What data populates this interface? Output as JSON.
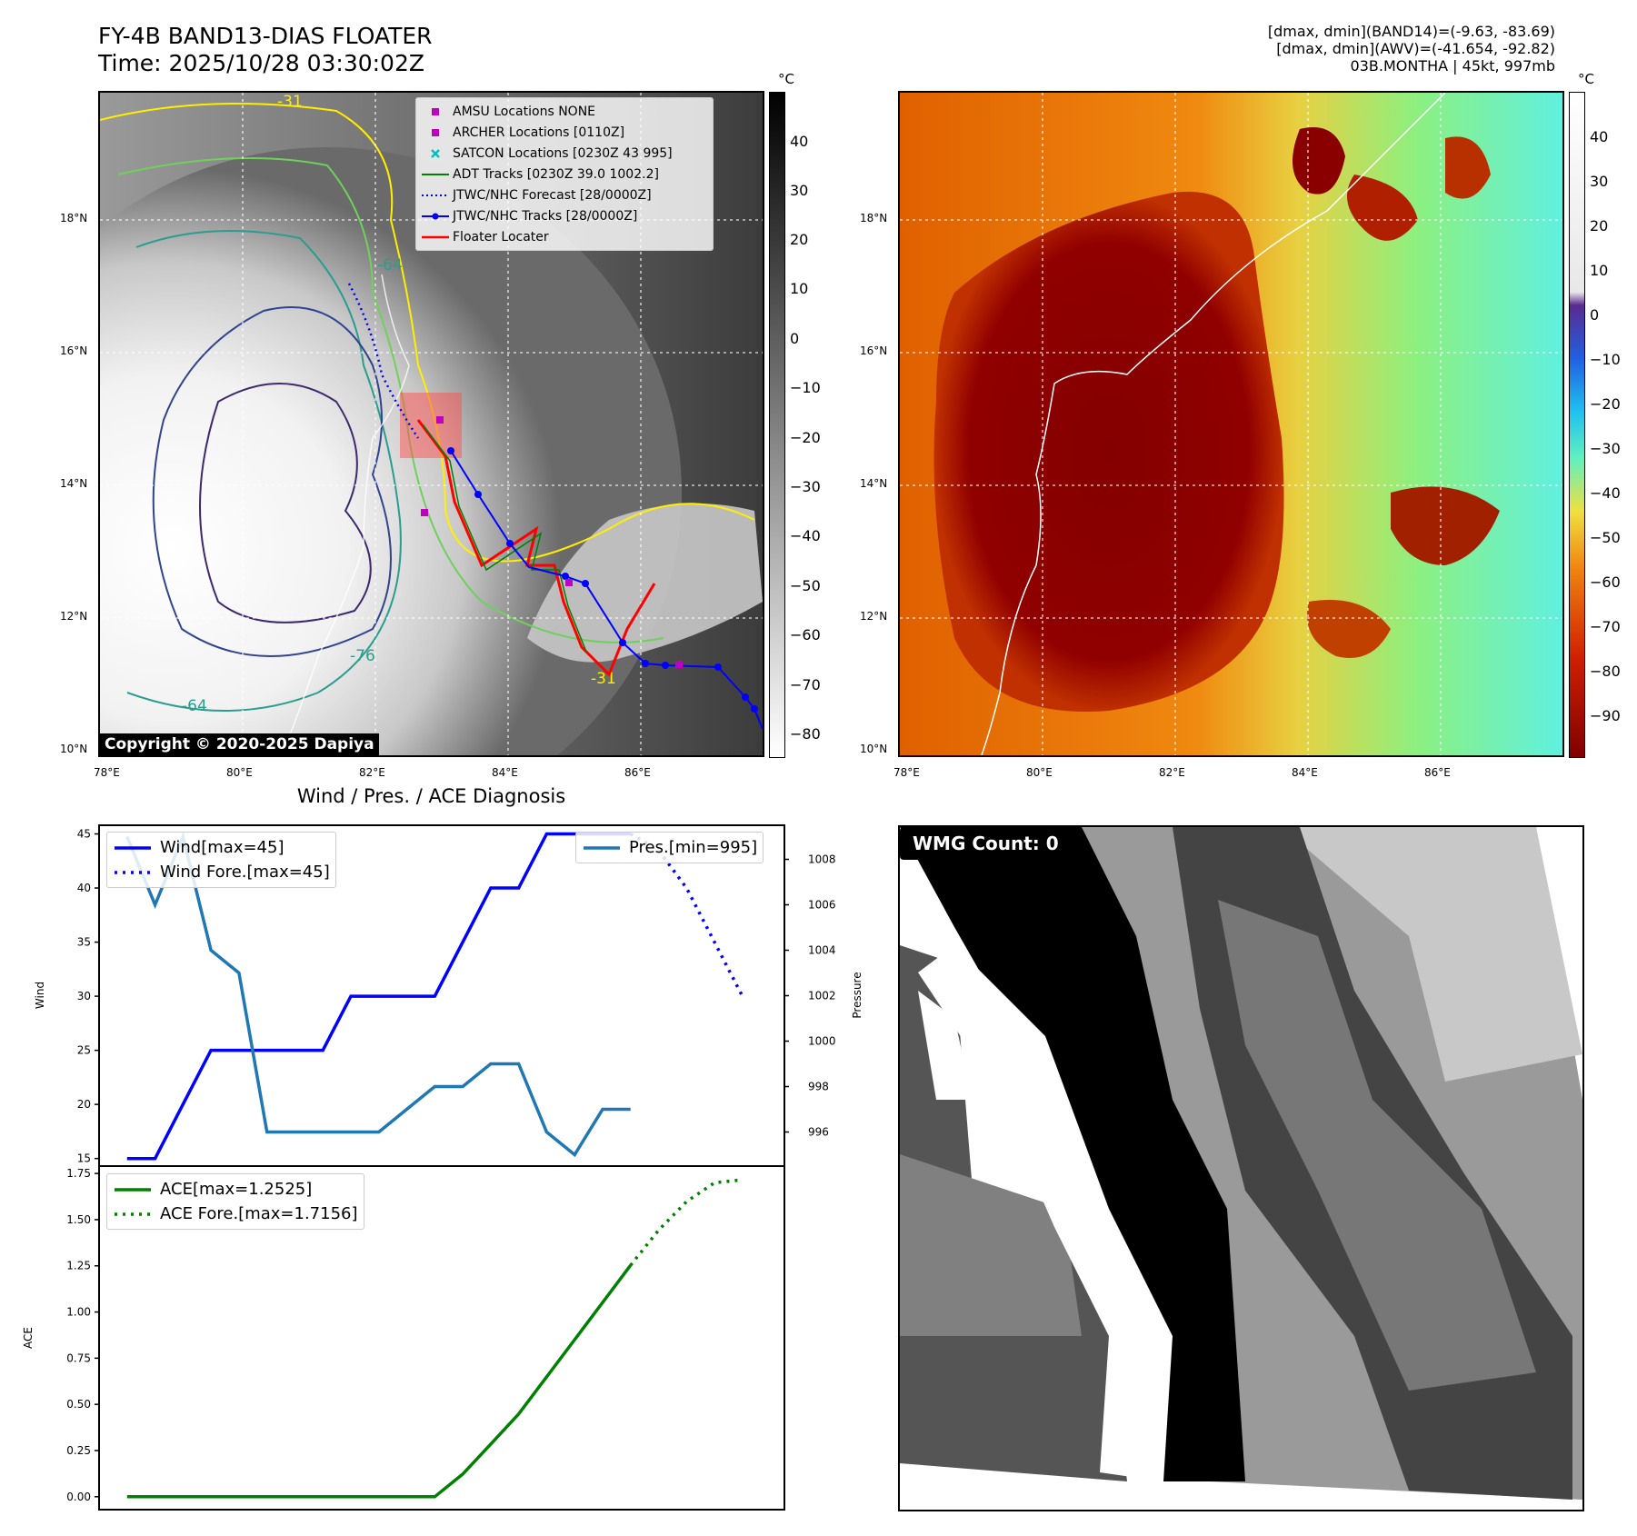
{
  "header": {
    "title_line1": "FY-4B BAND13-DIAS FLOATER",
    "title_line2": "Time: 2025/10/28 03:30:02Z",
    "info_line1": "[dmax, dmin](BAND14)=(-9.63, -83.69)",
    "info_line2": "[dmax, dmin](AWV)=(-41.654, -92.82)",
    "info_line3": "03B.MONTHA | 45kt, 997mb"
  },
  "ir_panel": {
    "lat_labels": [
      "18°N",
      "16°N",
      "14°N",
      "12°N",
      "10°N"
    ],
    "lon_labels": [
      "78°E",
      "80°E",
      "82°E",
      "84°E",
      "86°E"
    ],
    "copyright": "Copyright © 2020-2025 Dapiya",
    "contour_labels": [
      "-64",
      "-76",
      "-64",
      "-31",
      "-31"
    ],
    "legend": [
      {
        "label": "AMSU Locations NONE",
        "color": "#c000c0",
        "kind": "square"
      },
      {
        "label": "ARCHER Locations [0110Z]",
        "color": "#c000c0",
        "kind": "square"
      },
      {
        "label": "SATCON Locations [0230Z 43 995]",
        "color": "#00c0c0",
        "kind": "x"
      },
      {
        "label": "ADT Tracks [0230Z 39.0 1002.2]",
        "color": "#008000",
        "kind": "line"
      },
      {
        "label": "JTWC/NHC Forecast [28/0000Z]",
        "color": "#0000ff",
        "kind": "dotted"
      },
      {
        "label": "JTWC/NHC Tracks [28/0000Z]",
        "color": "#0000ff",
        "kind": "linedot"
      },
      {
        "label": "Floater Locater",
        "color": "#ff0000",
        "kind": "line"
      }
    ],
    "colorbar_unit": "°C",
    "colorbar_ticks": [
      "40",
      "30",
      "20",
      "10",
      "0",
      "−10",
      "−20",
      "−30",
      "−40",
      "−50",
      "−60",
      "−70",
      "−80"
    ]
  },
  "awv_panel": {
    "lat_labels": [
      "18°N",
      "16°N",
      "14°N",
      "12°N",
      "10°N"
    ],
    "lon_labels": [
      "78°E",
      "80°E",
      "82°E",
      "84°E",
      "86°E"
    ],
    "colorbar_unit": "°C",
    "colorbar_ticks": [
      "40",
      "30",
      "20",
      "10",
      "0",
      "−10",
      "−20",
      "−30",
      "−40",
      "−50",
      "−60",
      "−70",
      "−80",
      "−90"
    ]
  },
  "wmg_panel": {
    "label": "WMG Count: 0"
  },
  "chart_data": [
    {
      "type": "line",
      "title": "Wind / Pres. / ACE Diagnosis",
      "ylabel": "Wind",
      "y2label": "Pressure",
      "ylim": [
        14.3,
        45.8
      ],
      "y2lim": [
        994.5,
        1009.5
      ],
      "yticks": [
        15,
        20,
        25,
        30,
        35,
        40,
        45
      ],
      "y2ticks": [
        996,
        998,
        1000,
        1002,
        1004,
        1006,
        1008
      ],
      "xlim": [
        -1,
        23.5
      ],
      "series": [
        {
          "name": "Wind[max=45]",
          "color": "#0000ff",
          "style": "solid",
          "x": [
            0,
            1,
            2,
            3,
            4,
            5,
            6,
            7,
            8,
            9,
            10,
            11,
            12,
            13,
            14,
            15,
            16,
            17,
            18
          ],
          "y": [
            15,
            15,
            20,
            25,
            25,
            25,
            25,
            25,
            30,
            30,
            30,
            30,
            35,
            40,
            40,
            45,
            45,
            45,
            45
          ]
        },
        {
          "name": "Wind Fore.[max=45]",
          "color": "#0000ff",
          "style": "dotted",
          "x": [
            18,
            19,
            20,
            21,
            22
          ],
          "y": [
            45,
            43.5,
            40,
            35,
            30
          ]
        },
        {
          "name": "Pres.[min=995]",
          "color": "#1f77b4",
          "style": "solid",
          "axis": "y2",
          "x": [
            0,
            1,
            2,
            3,
            4,
            5,
            6,
            7,
            8,
            9,
            10,
            11,
            12,
            13,
            14,
            15,
            16,
            17,
            18
          ],
          "y": [
            1009,
            1006,
            1009,
            1004,
            1003,
            996,
            996,
            996,
            996,
            996,
            997,
            998,
            998,
            999,
            999,
            996,
            995,
            997,
            997
          ]
        }
      ]
    },
    {
      "type": "line",
      "ylabel": "ACE",
      "ylim": [
        -0.07,
        1.79
      ],
      "yticks": [
        "0.00",
        "0.25",
        "0.50",
        "0.75",
        "1.00",
        "1.25",
        "1.50",
        "1.75"
      ],
      "xlim": [
        -1,
        23.5
      ],
      "series": [
        {
          "name": "ACE[max=1.2525]",
          "color": "#008000",
          "style": "solid",
          "x": [
            0,
            1,
            2,
            3,
            4,
            5,
            6,
            7,
            8,
            9,
            10,
            11,
            12,
            13,
            14,
            15,
            16,
            17,
            18
          ],
          "y": [
            0,
            0,
            0,
            0,
            0,
            0,
            0,
            0,
            0,
            0,
            0,
            0,
            0.1225,
            0.285,
            0.4475,
            0.6488,
            0.85,
            1.0513,
            1.2525
          ]
        },
        {
          "name": "ACE Fore.[max=1.7156]",
          "color": "#008000",
          "style": "dotted",
          "x": [
            18,
            19,
            20,
            21,
            22
          ],
          "y": [
            1.2525,
            1.4425,
            1.5975,
            1.7,
            1.7156
          ]
        }
      ]
    }
  ]
}
